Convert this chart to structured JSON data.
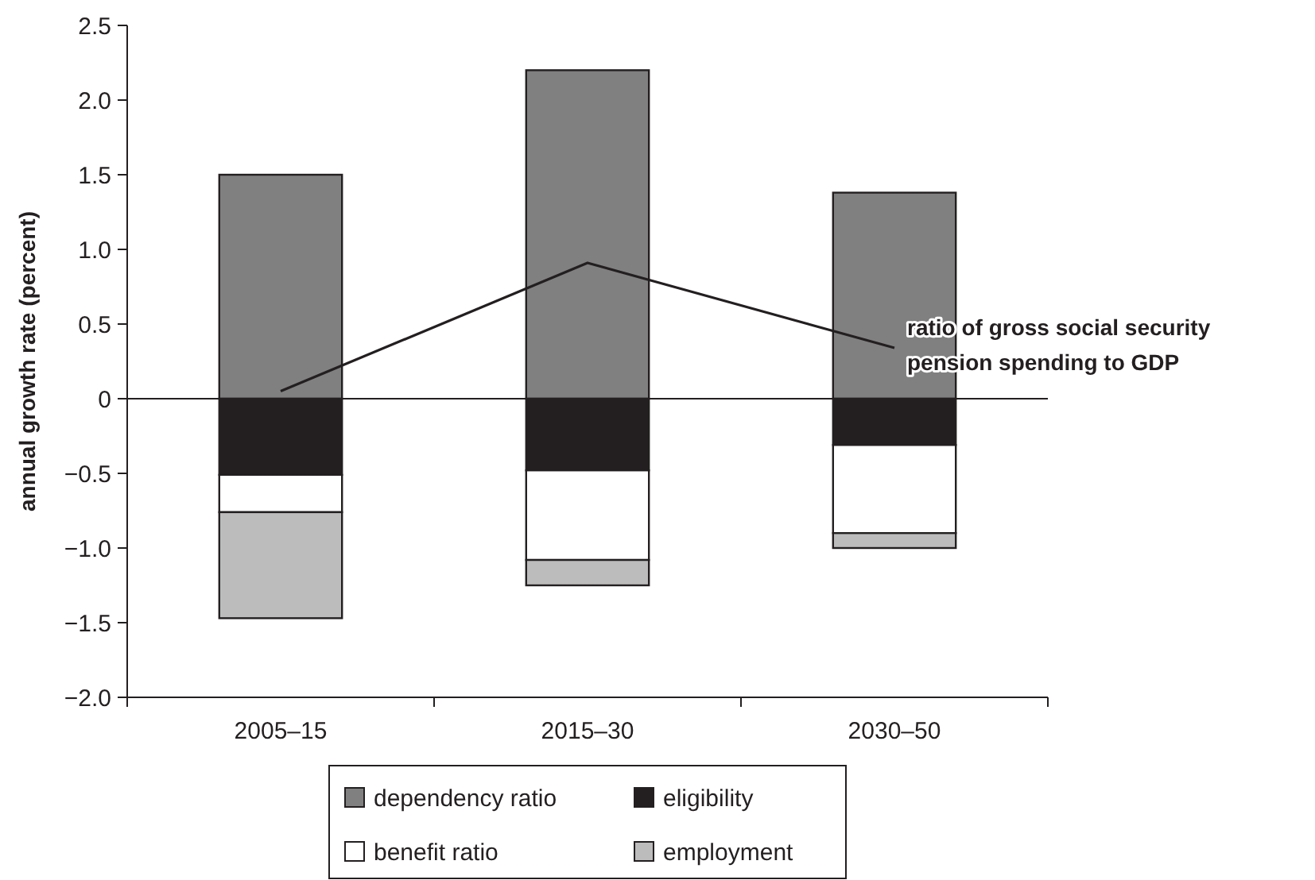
{
  "chart_data": {
    "type": "bar",
    "stacked": true,
    "ylabel": "annual growth rate (percent)",
    "categories": [
      "2005–15",
      "2015–30",
      "2030–50"
    ],
    "series": [
      {
        "name": "dependency ratio",
        "color": "#808080",
        "values": [
          1.5,
          2.2,
          1.38
        ]
      },
      {
        "name": "eligibility",
        "color": "#231f20",
        "values": [
          -0.51,
          -0.48,
          -0.31
        ]
      },
      {
        "name": "benefit ratio",
        "color": "#ffffff",
        "values": [
          -0.25,
          -0.6,
          -0.59
        ]
      },
      {
        "name": "employment",
        "color": "#bcbcbc",
        "values": [
          -0.71,
          -0.17,
          -0.1
        ]
      },
      {
        "name": "ratio of gross social security pension spending to GDP",
        "type": "line",
        "color": "#231f20",
        "values": [
          0.05,
          0.91,
          0.34
        ]
      }
    ],
    "ylim": [
      -2,
      2.5
    ],
    "yticks": [
      {
        "value": -2,
        "label": "−2.0"
      },
      {
        "value": -1.5,
        "label": "−1.5"
      },
      {
        "value": -1,
        "label": "−1.0"
      },
      {
        "value": -0.5,
        "label": "−0.5"
      },
      0,
      0.5,
      {
        "value": 1,
        "label": "1.0"
      },
      1.5,
      {
        "value": 2,
        "label": "2.0"
      },
      2.5
    ],
    "legend": "bottom"
  }
}
